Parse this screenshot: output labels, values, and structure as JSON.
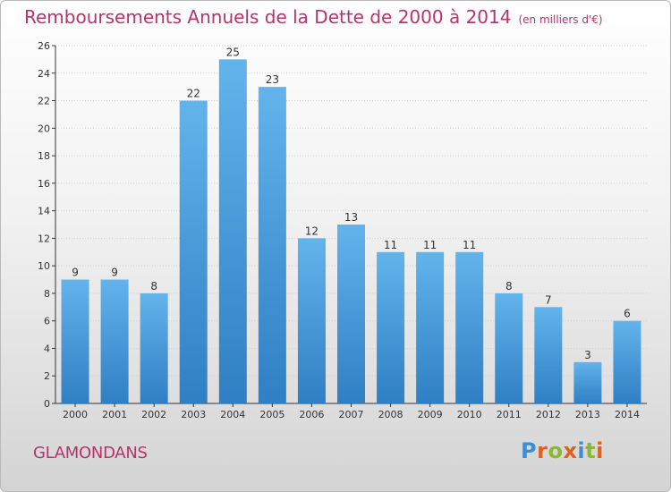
{
  "header": {
    "title": "Remboursements Annuels de la Dette de 2000 à 2014",
    "unit": "(en milliers d'€)"
  },
  "footer": {
    "city": "GLAMONDANS",
    "logo": "Proxiti",
    "logo_colors": [
      "#3c8fd2",
      "#e0611b",
      "#8bb92d",
      "#e0611b",
      "#3c8fd2",
      "#8bb92d",
      "#e0611b"
    ]
  },
  "colors": {
    "title": "#b5346c",
    "bar_top": "#63b3ec",
    "bar_bottom": "#2f7fc4",
    "axis": "#333333",
    "grid": "#d0d0d0"
  },
  "chart_data": {
    "type": "bar",
    "title": "Remboursements Annuels de la Dette de 2000 à 2014",
    "unit": "(en milliers d'€)",
    "categories": [
      "2000",
      "2001",
      "2002",
      "2003",
      "2004",
      "2005",
      "2006",
      "2007",
      "2008",
      "2009",
      "2010",
      "2011",
      "2012",
      "2013",
      "2014"
    ],
    "values": [
      9,
      9,
      8,
      22,
      25,
      23,
      12,
      13,
      11,
      11,
      11,
      8,
      7,
      3,
      6
    ],
    "ylim": [
      0,
      26
    ],
    "yticks": [
      0,
      2,
      4,
      6,
      8,
      10,
      12,
      14,
      16,
      18,
      20,
      22,
      24,
      26
    ],
    "grid": true,
    "data_labels": true
  }
}
